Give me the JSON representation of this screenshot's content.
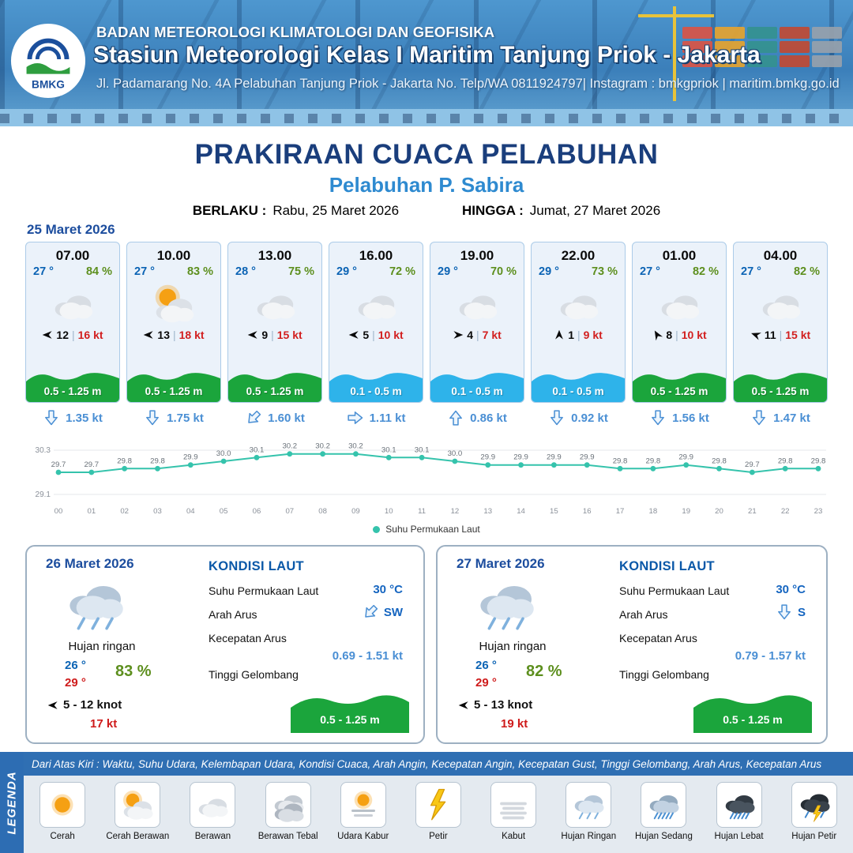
{
  "colors": {
    "header_blue": "#3b7fba",
    "navy": "#1a3e7c",
    "accent_blue": "#2e8ad0",
    "date_blue": "#1c4d9e",
    "temp_blue": "#0b63b4",
    "humidity_green": "#5d8f1e",
    "gust_red": "#d21f1f",
    "wave_green": "#1ba53c",
    "wave_blue": "#2eb3ea",
    "current_blue": "#4a8fd4",
    "sst_line_teal": "#35c3ac",
    "legend_blue": "#2d6db3"
  },
  "ui": {
    "wind_divider": "|"
  },
  "header": {
    "logo": "BMKG",
    "agency": "BADAN METEOROLOGI KLIMATOLOGI DAN GEOFISIKA",
    "station": "Stasiun Meteorologi Kelas I Maritim Tanjung Priok - Jakarta",
    "address": "Jl. Padamarang No. 4A Pelabuhan Tanjung Priok - Jakarta No. Telp/WA 0811924797| Instagram : bmkgpriok | maritim.bmkg.go.id"
  },
  "title": {
    "main": "PRAKIRAAN CUACA PELABUHAN",
    "sub": "Pelabuhan P. Sabira",
    "berlaku_label": "BERLAKU :",
    "berlaku_value": "Rabu, 25 Maret 2026",
    "hingga_label": "HINGGA :",
    "hingga_value": "Jumat, 27 Maret 2026"
  },
  "day1": {
    "date": "25 Maret 2026",
    "cards": [
      {
        "time": "07.00",
        "temp": "27 °",
        "humidity": "84 %",
        "icon": "berawan",
        "wind_speed": "12",
        "gust": "16 kt",
        "wind_rot": 180,
        "wave": "0.5 - 1.25 m",
        "wave_type": "green",
        "current": "1.35 kt",
        "current_rot": 0
      },
      {
        "time": "10.00",
        "temp": "27 °",
        "humidity": "83 %",
        "icon": "cerah-berawan",
        "wind_speed": "13",
        "gust": "18 kt",
        "wind_rot": 180,
        "wave": "0.5 - 1.25 m",
        "wave_type": "green",
        "current": "1.75 kt",
        "current_rot": 0
      },
      {
        "time": "13.00",
        "temp": "28 °",
        "humidity": "75 %",
        "icon": "berawan",
        "wind_speed": "9",
        "gust": "15 kt",
        "wind_rot": 180,
        "wave": "0.5 - 1.25 m",
        "wave_type": "green",
        "current": "1.60 kt",
        "current_rot": 45
      },
      {
        "time": "16.00",
        "temp": "29 °",
        "humidity": "72 %",
        "icon": "berawan",
        "wind_speed": "5",
        "gust": "10 kt",
        "wind_rot": 180,
        "wave": "0.1 - 0.5 m",
        "wave_type": "blue",
        "current": "1.11 kt",
        "current_rot": -90
      },
      {
        "time": "19.00",
        "temp": "29 °",
        "humidity": "70 %",
        "icon": "berawan",
        "wind_speed": "4",
        "gust": "7 kt",
        "wind_rot": 0,
        "wave": "0.1 - 0.5 m",
        "wave_type": "blue",
        "current": "0.86 kt",
        "current_rot": 180
      },
      {
        "time": "22.00",
        "temp": "29 °",
        "humidity": "73 %",
        "icon": "berawan",
        "wind_speed": "1",
        "gust": "9 kt",
        "wind_rot": 270,
        "wave": "0.1 - 0.5 m",
        "wave_type": "blue",
        "current": "0.92 kt",
        "current_rot": 0
      },
      {
        "time": "01.00",
        "temp": "27 °",
        "humidity": "82 %",
        "icon": "berawan",
        "wind_speed": "8",
        "gust": "10 kt",
        "wind_rot": 240,
        "wave": "0.5 - 1.25 m",
        "wave_type": "green",
        "current": "1.56 kt",
        "current_rot": 0
      },
      {
        "time": "04.00",
        "temp": "27 °",
        "humidity": "82 %",
        "icon": "berawan",
        "wind_speed": "11",
        "gust": "15 kt",
        "wind_rot": 200,
        "wave": "0.5 - 1.25 m",
        "wave_type": "green",
        "current": "1.47 kt",
        "current_rot": 0
      }
    ]
  },
  "chart_data": {
    "type": "line",
    "title": "Suhu Permukaan Laut",
    "legend_label": "Suhu Permukaan Laut",
    "unit": "°C",
    "x": [
      "00",
      "01",
      "02",
      "03",
      "04",
      "05",
      "06",
      "07",
      "08",
      "09",
      "10",
      "11",
      "12",
      "13",
      "14",
      "15",
      "16",
      "17",
      "18",
      "19",
      "20",
      "21",
      "22",
      "23"
    ],
    "values": [
      29.7,
      29.7,
      29.8,
      29.8,
      29.9,
      30.0,
      30.1,
      30.2,
      30.2,
      30.2,
      30.1,
      30.1,
      30.0,
      29.9,
      29.9,
      29.9,
      29.9,
      29.8,
      29.8,
      29.9,
      29.8,
      29.7,
      29.8,
      29.8
    ],
    "ylim": [
      29.1,
      30.3
    ],
    "grid": true,
    "legend_position": "bottom",
    "line_color": "#35c3ac"
  },
  "days": [
    {
      "date": "26 Maret 2026",
      "icon": "hujan-ringan",
      "condition": "Hujan ringan",
      "temp_min": "26 °",
      "temp_max": "29 °",
      "humidity": "83 %",
      "wind": "5  - 12 knot",
      "gust": "17 kt",
      "sea": {
        "heading": "KONDISI LAUT",
        "sst_label": "Suhu Permukaan Laut",
        "sst": "30 °C",
        "arus_label": "Arah Arus",
        "arus_dir": "SW",
        "arus_rot": 45,
        "kec_label": "Kecepatan Arus",
        "kec": "0.69 - 1.51 kt",
        "gel_label": "Tinggi Gelombang",
        "gel": "0.5 - 1.25 m"
      }
    },
    {
      "date": "27 Maret 2026",
      "icon": "hujan-ringan",
      "condition": "Hujan ringan",
      "temp_min": "26 °",
      "temp_max": "29 °",
      "humidity": "82 %",
      "wind": "5  - 13 knot",
      "gust": "19 kt",
      "sea": {
        "heading": "KONDISI LAUT",
        "sst_label": "Suhu Permukaan Laut",
        "sst": "30 °C",
        "arus_label": "Arah Arus",
        "arus_dir": "S",
        "arus_rot": 0,
        "kec_label": "Kecepatan Arus",
        "kec": "0.79 - 1.57 kt",
        "gel_label": "Tinggi Gelombang",
        "gel": "0.5 - 1.25 m"
      }
    }
  ],
  "legend": {
    "vertical_label": "LEGENDA",
    "description": "Dari Atas Kiri : Waktu, Suhu Udara, Kelembapan Udara, Kondisi Cuaca, Arah Angin, Kecepatan Angin, Kecepatan Gust, Tinggi Gelombang, Arah Arus, Kecepatan Arus",
    "items": [
      {
        "label": "Cerah",
        "icon": "cerah"
      },
      {
        "label": "Cerah Berawan",
        "icon": "cerah-berawan"
      },
      {
        "label": "Berawan",
        "icon": "berawan"
      },
      {
        "label": "Berawan Tebal",
        "icon": "berawan-tebal"
      },
      {
        "label": "Udara Kabur",
        "icon": "udara-kabur"
      },
      {
        "label": "Petir",
        "icon": "petir"
      },
      {
        "label": "Kabut",
        "icon": "kabut"
      },
      {
        "label": "Hujan Ringan",
        "icon": "hujan-ringan"
      },
      {
        "label": "Hujan Sedang",
        "icon": "hujan-sedang"
      },
      {
        "label": "Hujan Lebat",
        "icon": "hujan-lebat"
      },
      {
        "label": "Hujan Petir",
        "icon": "hujan-petir"
      }
    ]
  }
}
